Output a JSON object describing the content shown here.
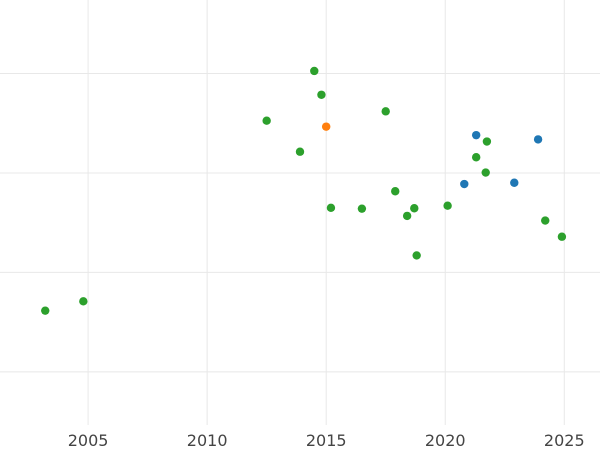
{
  "chart_data": {
    "type": "scatter",
    "title": "",
    "xlabel": "",
    "ylabel": "",
    "xlim": [
      2001.3,
      2026.5
    ],
    "ylim": [
      0.0,
      1.0
    ],
    "x_ticks": [
      2005,
      2010,
      2015,
      2020,
      2025
    ],
    "x_tick_labels": [
      "2005",
      "2010",
      "2015",
      "2020",
      "2025"
    ],
    "y_grid": [
      0.125,
      0.359,
      0.593,
      0.827
    ],
    "grid": true,
    "legend": "none",
    "series": [
      {
        "color": "#2ca02c",
        "points": [
          {
            "x": 2003.2,
            "y": 0.269
          },
          {
            "x": 2004.8,
            "y": 0.291
          },
          {
            "x": 2012.5,
            "y": 0.716
          },
          {
            "x": 2013.9,
            "y": 0.643
          },
          {
            "x": 2014.5,
            "y": 0.833
          },
          {
            "x": 2014.8,
            "y": 0.777
          },
          {
            "x": 2015.2,
            "y": 0.511
          },
          {
            "x": 2016.5,
            "y": 0.509
          },
          {
            "x": 2017.5,
            "y": 0.738
          },
          {
            "x": 2017.9,
            "y": 0.55
          },
          {
            "x": 2018.4,
            "y": 0.492
          },
          {
            "x": 2018.7,
            "y": 0.51
          },
          {
            "x": 2018.8,
            "y": 0.399
          },
          {
            "x": 2020.1,
            "y": 0.516
          },
          {
            "x": 2021.3,
            "y": 0.63
          },
          {
            "x": 2021.7,
            "y": 0.594
          },
          {
            "x": 2021.75,
            "y": 0.667
          },
          {
            "x": 2024.2,
            "y": 0.481
          },
          {
            "x": 2024.9,
            "y": 0.443
          }
        ]
      },
      {
        "color": "#1f77b4",
        "points": [
          {
            "x": 2020.8,
            "y": 0.567
          },
          {
            "x": 2021.3,
            "y": 0.682
          },
          {
            "x": 2022.9,
            "y": 0.57
          },
          {
            "x": 2023.9,
            "y": 0.672
          }
        ]
      },
      {
        "color": "#ff7f0e",
        "points": [
          {
            "x": 2015.0,
            "y": 0.702
          }
        ]
      }
    ]
  }
}
